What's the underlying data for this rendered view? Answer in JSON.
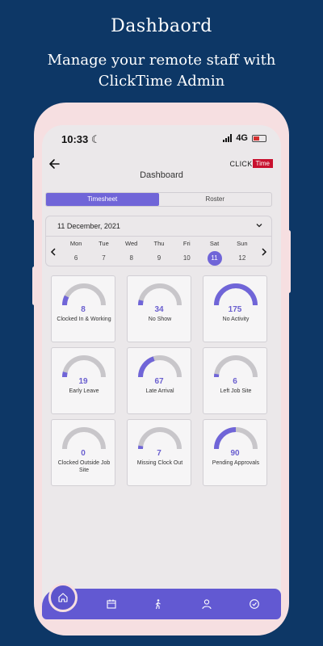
{
  "promo": {
    "title": "Dashbaord",
    "subtitle_line1": "Manage your remote staff with",
    "subtitle_line2": "ClickTime Admin"
  },
  "status_bar": {
    "time": "10:33",
    "network": "4G"
  },
  "header": {
    "title": "Dashboard",
    "logo_click": "CLICK",
    "logo_time": "Time"
  },
  "tabs": [
    {
      "label": "Timesheet",
      "active": true
    },
    {
      "label": "Roster",
      "active": false
    }
  ],
  "date_picker": {
    "selected_date": "11 December, 2021",
    "days": [
      {
        "name": "Mon",
        "num": "6"
      },
      {
        "name": "Tue",
        "num": "7"
      },
      {
        "name": "Wed",
        "num": "8"
      },
      {
        "name": "Thu",
        "num": "9"
      },
      {
        "name": "Fri",
        "num": "10"
      },
      {
        "name": "Sat",
        "num": "11",
        "selected": true
      },
      {
        "name": "Sun",
        "num": "12"
      }
    ]
  },
  "tiles": [
    {
      "count": "8",
      "label": "Clocked In & Working",
      "fill": 0.15
    },
    {
      "count": "34",
      "label": "No Show",
      "fill": 0.08
    },
    {
      "count": "175",
      "label": "No Activity",
      "fill": 1.0
    },
    {
      "count": "19",
      "label": "Early Leave",
      "fill": 0.08
    },
    {
      "count": "67",
      "label": "Late Arrival",
      "fill": 0.4
    },
    {
      "count": "6",
      "label": "Left Job Site",
      "fill": 0.05
    },
    {
      "count": "0",
      "label": "Clocked Outside Job Site",
      "fill": 0.0
    },
    {
      "count": "7",
      "label": "Missing Clock Out",
      "fill": 0.05
    },
    {
      "count": "90",
      "label": "Pending Approvals",
      "fill": 0.5
    }
  ],
  "colors": {
    "accent": "#7065d8",
    "gauge_track": "#c8c6ca",
    "background": "#0d3766",
    "phone": "#f6dfe1"
  },
  "nav": [
    "home-icon",
    "calendar-icon",
    "walking-icon",
    "user-icon",
    "clock-check-icon"
  ]
}
